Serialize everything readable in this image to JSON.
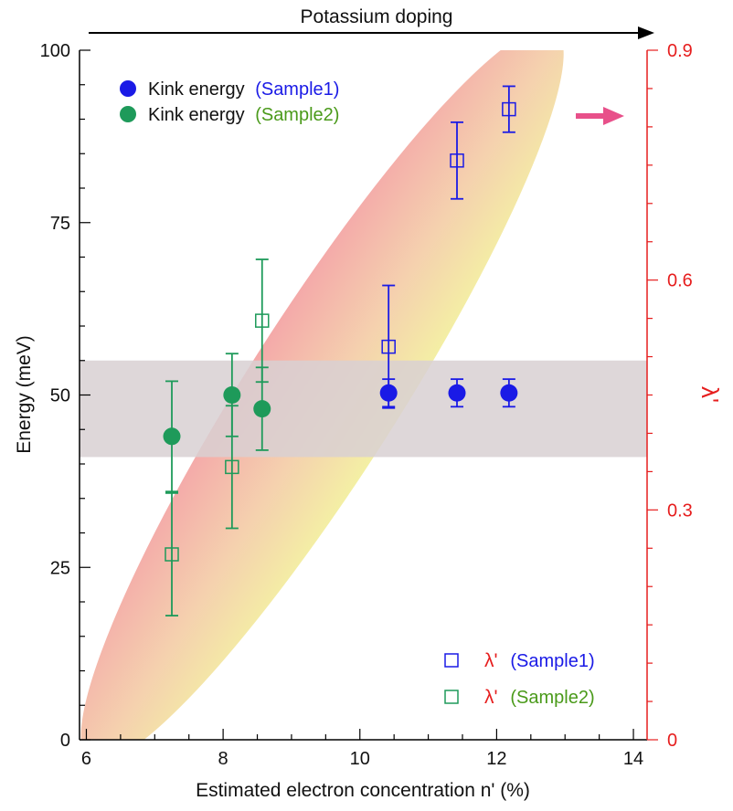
{
  "chart_data": {
    "type": "scatter",
    "title": "",
    "top_annotation": "Potassium doping",
    "xlabel": "Estimated electron concentration n' (%)",
    "ylabel_left": "Energy (meV)",
    "ylabel_right": "λ'",
    "xlim": [
      5.9,
      14.2
    ],
    "ylim_left": [
      0,
      100
    ],
    "ylim_right": [
      0,
      0.9
    ],
    "x_ticks": [
      "6",
      "8",
      "10",
      "12",
      "14"
    ],
    "y_left_ticks": [
      "0",
      "25",
      "50",
      "75",
      "100"
    ],
    "y_right_ticks": [
      "0",
      "0.3",
      "0.6",
      "0.9"
    ],
    "colors": {
      "sample1": "#1a1ae6",
      "sample2": "#1e9a5a",
      "sample2_label": "#4a9a1a",
      "right_axis": "#e61e1e",
      "band": "#d8d0d2",
      "arrow": "#e8508a"
    },
    "legend_top": [
      {
        "marker": "filled-circle",
        "label": "Kink energy",
        "sample": "(Sample1)",
        "color": "#1a1ae6"
      },
      {
        "marker": "filled-circle",
        "label": "Kink energy",
        "sample": "(Sample2)",
        "color": "#1e9a5a"
      }
    ],
    "legend_bottom": [
      {
        "marker": "open-square",
        "label": "λ'",
        "sample": "(Sample1)",
        "color": "#1a1ae6"
      },
      {
        "marker": "open-square",
        "label": "λ'",
        "sample": "(Sample2)",
        "color": "#1e9a5a"
      }
    ],
    "series": [
      {
        "name": "Kink energy (Sample1)",
        "axis": "left",
        "marker": "filled-circle",
        "color": "#1a1ae6",
        "points": [
          {
            "x": 10.42,
            "y": 50.3,
            "err": 2.0
          },
          {
            "x": 11.42,
            "y": 50.3,
            "err": 2.0
          },
          {
            "x": 12.18,
            "y": 50.3,
            "err": 2.0
          }
        ]
      },
      {
        "name": "Kink energy (Sample2)",
        "axis": "left",
        "marker": "filled-circle",
        "color": "#1e9a5a",
        "points": [
          {
            "x": 7.25,
            "y": 44.0,
            "err": 8.0
          },
          {
            "x": 8.13,
            "y": 50.0,
            "err": 6.0
          },
          {
            "x": 8.57,
            "y": 48.0,
            "err": 6.0
          }
        ]
      },
      {
        "name": "λ' (Sample1)",
        "axis": "right",
        "marker": "open-square",
        "color": "#1a1ae6",
        "points": [
          {
            "x": 10.42,
            "y": 0.513,
            "err": 0.08
          },
          {
            "x": 11.42,
            "y": 0.756,
            "err": 0.05
          },
          {
            "x": 12.18,
            "y": 0.823,
            "err": 0.03
          }
        ]
      },
      {
        "name": "λ' (Sample2)",
        "axis": "right",
        "marker": "open-square",
        "color": "#1e9a5a",
        "points": [
          {
            "x": 7.25,
            "y": 0.242,
            "err": 0.08
          },
          {
            "x": 8.13,
            "y": 0.356,
            "err": 0.08
          },
          {
            "x": 8.57,
            "y": 0.547,
            "err": 0.08
          }
        ]
      }
    ],
    "shaded_band": {
      "axis": "left",
      "y_range": [
        41,
        55
      ]
    },
    "shaded_ellipse": {
      "axis": "left",
      "start": {
        "x": 6.05,
        "y": -3
      },
      "end": {
        "x": 12.85,
        "y": 103
      },
      "colors": [
        "#f2ee9a",
        "#f29a9a"
      ]
    }
  }
}
